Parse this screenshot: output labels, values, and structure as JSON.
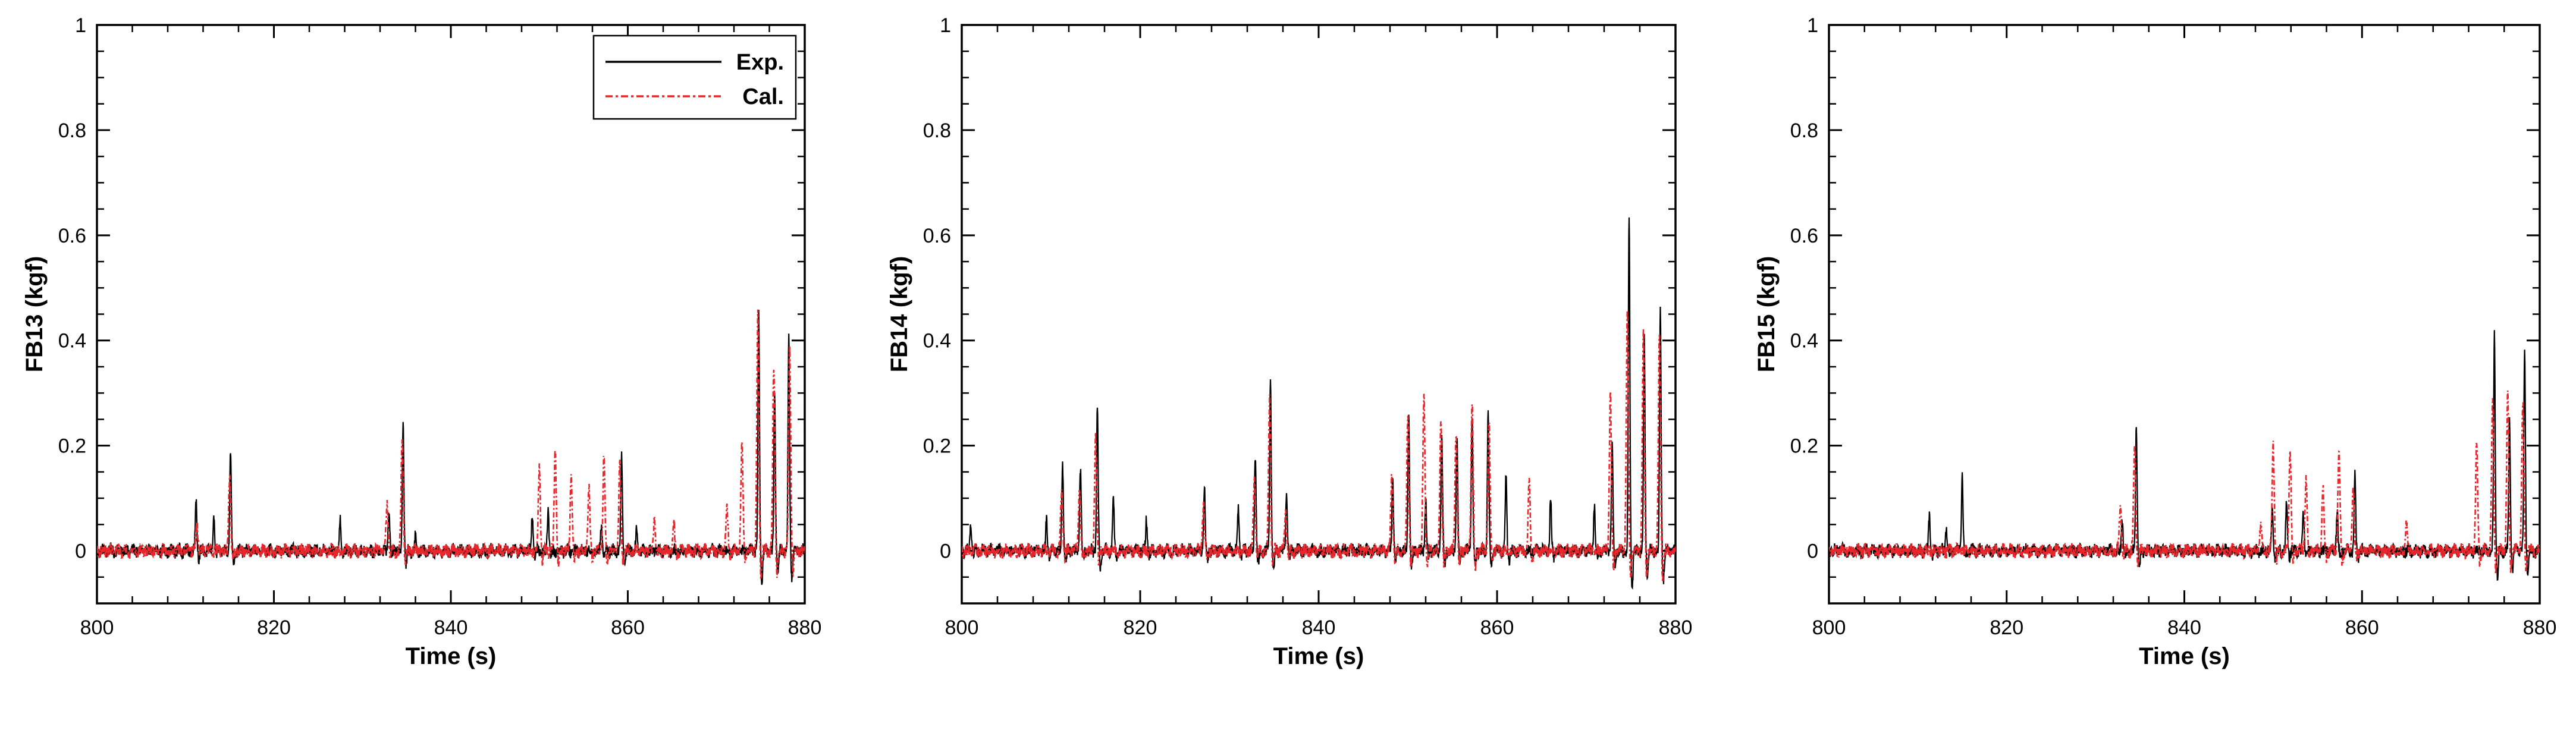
{
  "chart_data": [
    {
      "type": "line",
      "xlabel": "Time (s)",
      "ylabel": "FB13 (kgf)",
      "xlim": [
        800,
        880
      ],
      "ylim": [
        -0.1,
        1.0
      ],
      "x_ticks": [
        800,
        820,
        840,
        860,
        880
      ],
      "y_ticks": [
        0,
        0.2,
        0.4,
        0.6,
        0.8,
        1
      ],
      "legend": {
        "position": "top-right",
        "entries": [
          "Exp.",
          "Cal."
        ]
      },
      "series": [
        {
          "name": "Exp.",
          "color": "#000000",
          "dash": "solid",
          "peaks": [
            [
              811.2,
              0.1
            ],
            [
              813.2,
              0.07
            ],
            [
              815.1,
              0.19
            ],
            [
              827.5,
              0.06
            ],
            [
              833.0,
              0.08
            ],
            [
              834.6,
              0.25
            ],
            [
              836.0,
              0.03
            ],
            [
              849.2,
              0.07
            ],
            [
              851.0,
              0.08
            ],
            [
              857.0,
              0.05
            ],
            [
              859.3,
              0.18
            ],
            [
              861.0,
              0.04
            ],
            [
              874.8,
              0.46
            ],
            [
              876.6,
              0.3
            ],
            [
              878.2,
              0.4
            ]
          ]
        },
        {
          "name": "Cal.",
          "color": "#e8262b",
          "dash": "dashdot",
          "peaks": [
            [
              811.3,
              0.05
            ],
            [
              815.0,
              0.14
            ],
            [
              832.8,
              0.09
            ],
            [
              834.5,
              0.22
            ],
            [
              850.0,
              0.16
            ],
            [
              851.8,
              0.19
            ],
            [
              853.6,
              0.14
            ],
            [
              855.6,
              0.12
            ],
            [
              857.3,
              0.18
            ],
            [
              859.1,
              0.16
            ],
            [
              863.0,
              0.06
            ],
            [
              865.2,
              0.05
            ],
            [
              871.2,
              0.08
            ],
            [
              872.9,
              0.2
            ],
            [
              874.7,
              0.45
            ],
            [
              876.5,
              0.35
            ],
            [
              878.3,
              0.38
            ]
          ]
        }
      ]
    },
    {
      "type": "line",
      "xlabel": "Time (s)",
      "ylabel": "FB14 (kgf)",
      "xlim": [
        800,
        880
      ],
      "ylim": [
        -0.1,
        1.0
      ],
      "x_ticks": [
        800,
        820,
        840,
        860,
        880
      ],
      "y_ticks": [
        0,
        0.2,
        0.4,
        0.6,
        0.8,
        1
      ],
      "series": [
        {
          "name": "Exp.",
          "color": "#000000",
          "dash": "solid",
          "peaks": [
            [
              801.0,
              0.05
            ],
            [
              809.5,
              0.06
            ],
            [
              811.3,
              0.17
            ],
            [
              813.3,
              0.16
            ],
            [
              815.2,
              0.28
            ],
            [
              817.0,
              0.1
            ],
            [
              820.7,
              0.06
            ],
            [
              827.2,
              0.12
            ],
            [
              831.0,
              0.08
            ],
            [
              832.9,
              0.18
            ],
            [
              834.6,
              0.32
            ],
            [
              836.4,
              0.11
            ],
            [
              848.3,
              0.14
            ],
            [
              850.1,
              0.26
            ],
            [
              852.0,
              0.1
            ],
            [
              853.8,
              0.22
            ],
            [
              855.5,
              0.22
            ],
            [
              857.2,
              0.26
            ],
            [
              859.0,
              0.26
            ],
            [
              861.0,
              0.14
            ],
            [
              866.0,
              0.1
            ],
            [
              870.9,
              0.09
            ],
            [
              872.9,
              0.2
            ],
            [
              874.8,
              0.64
            ],
            [
              876.5,
              0.4
            ],
            [
              878.3,
              0.46
            ]
          ]
        },
        {
          "name": "Cal.",
          "color": "#e8262b",
          "dash": "dashdot",
          "peaks": [
            [
              811.2,
              0.11
            ],
            [
              813.2,
              0.12
            ],
            [
              815.0,
              0.22
            ],
            [
              827.1,
              0.09
            ],
            [
              832.8,
              0.14
            ],
            [
              834.5,
              0.29
            ],
            [
              836.3,
              0.08
            ],
            [
              848.2,
              0.14
            ],
            [
              850.0,
              0.26
            ],
            [
              851.8,
              0.3
            ],
            [
              853.7,
              0.25
            ],
            [
              855.4,
              0.23
            ],
            [
              857.2,
              0.29
            ],
            [
              859.1,
              0.24
            ],
            [
              863.6,
              0.13
            ],
            [
              872.7,
              0.3
            ],
            [
              874.6,
              0.45
            ],
            [
              876.4,
              0.41
            ],
            [
              878.2,
              0.41
            ]
          ]
        }
      ]
    },
    {
      "type": "line",
      "xlabel": "Time (s)",
      "ylabel": "FB15 (kgf)",
      "xlim": [
        800,
        880
      ],
      "ylim": [
        -0.1,
        1.0
      ],
      "x_ticks": [
        800,
        820,
        840,
        860,
        880
      ],
      "y_ticks": [
        0,
        0.2,
        0.4,
        0.6,
        0.8,
        1
      ],
      "series": [
        {
          "name": "Exp.",
          "color": "#000000",
          "dash": "solid",
          "peaks": [
            [
              811.3,
              0.07
            ],
            [
              813.2,
              0.05
            ],
            [
              815.0,
              0.15
            ],
            [
              833.0,
              0.06
            ],
            [
              834.6,
              0.24
            ],
            [
              849.9,
              0.08
            ],
            [
              851.5,
              0.09
            ],
            [
              853.4,
              0.07
            ],
            [
              857.2,
              0.08
            ],
            [
              859.2,
              0.14
            ],
            [
              874.9,
              0.42
            ],
            [
              876.6,
              0.25
            ],
            [
              878.3,
              0.38
            ]
          ]
        },
        {
          "name": "Cal.",
          "color": "#e8262b",
          "dash": "dashdot",
          "peaks": [
            [
              832.8,
              0.09
            ],
            [
              834.4,
              0.2
            ],
            [
              848.6,
              0.05
            ],
            [
              850.0,
              0.2
            ],
            [
              851.9,
              0.2
            ],
            [
              853.7,
              0.14
            ],
            [
              855.6,
              0.12
            ],
            [
              857.4,
              0.19
            ],
            [
              859.0,
              0.12
            ],
            [
              865.0,
              0.05
            ],
            [
              872.9,
              0.21
            ],
            [
              874.7,
              0.29
            ],
            [
              876.4,
              0.3
            ],
            [
              878.1,
              0.28
            ]
          ]
        }
      ]
    }
  ]
}
